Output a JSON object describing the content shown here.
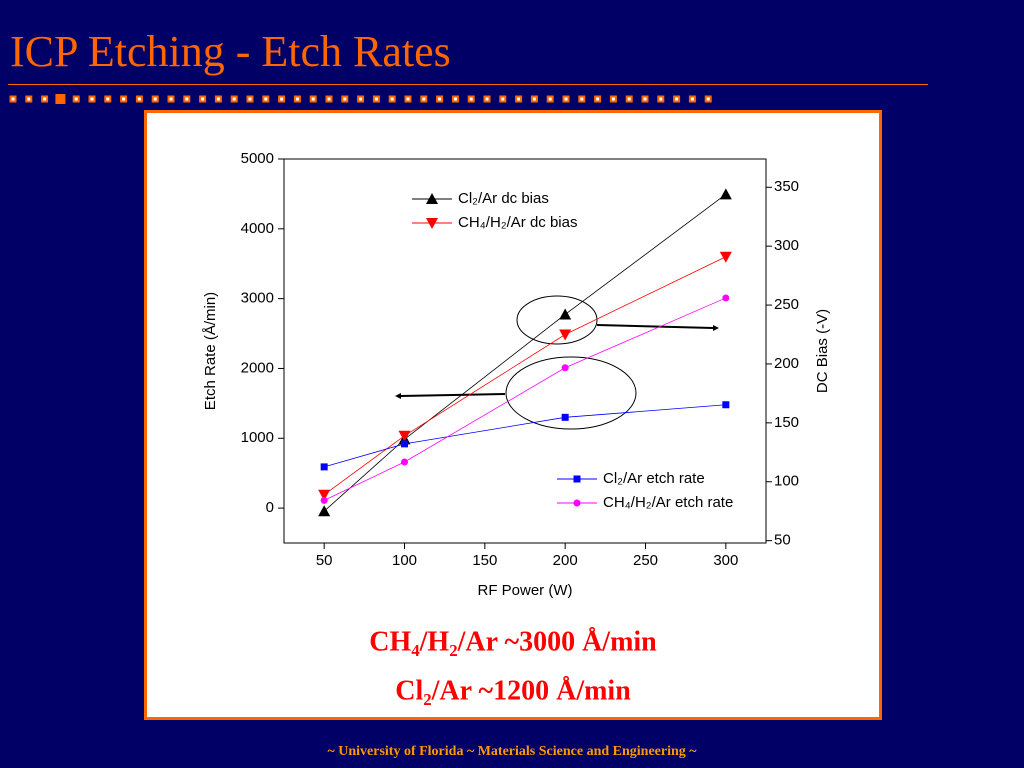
{
  "slide_title": "ICP Etching - Etch Rates",
  "captions": [
    "CH₄/H₂/Ar ~3000 Å/min",
    "Cl₂/Ar ~1200 Å/min"
  ],
  "footer": "~ University of Florida ~ Materials Science and Engineering ~",
  "chart_data": {
    "type": "line",
    "xlabel": "RF Power (W)",
    "ylabel": "Etch Rate (Å/min)",
    "y2label": "DC Bias (-V)",
    "x": [
      50,
      100,
      200,
      300
    ],
    "xlim": [
      25,
      325
    ],
    "xticks": [
      50,
      100,
      150,
      200,
      250,
      300
    ],
    "ylim": [
      -500,
      5000
    ],
    "yticks": [
      0,
      1000,
      2000,
      3000,
      4000,
      5000
    ],
    "y2lim": [
      48,
      374
    ],
    "y2ticks": [
      50,
      100,
      150,
      200,
      250,
      300,
      350
    ],
    "series": [
      {
        "name": "Cl₂/Ar dc bias",
        "color": "#000000",
        "marker": "triangle-up",
        "axis": "y2",
        "values": [
          75,
          136,
          242,
          344
        ]
      },
      {
        "name": "CH₄/H₂/Ar dc bias",
        "color": "#ff0000",
        "marker": "triangle-down",
        "axis": "y2",
        "values": [
          89,
          139,
          225,
          291
        ]
      },
      {
        "name": "Cl₂/Ar etch rate",
        "color": "#0000ff",
        "marker": "square",
        "values": [
          590,
          920,
          1300,
          1480
        ]
      },
      {
        "name": "CH₄/H₂/Ar etch rate",
        "color": "#ff00ff",
        "marker": "circle",
        "values": [
          110,
          660,
          2010,
          3010
        ]
      }
    ]
  }
}
